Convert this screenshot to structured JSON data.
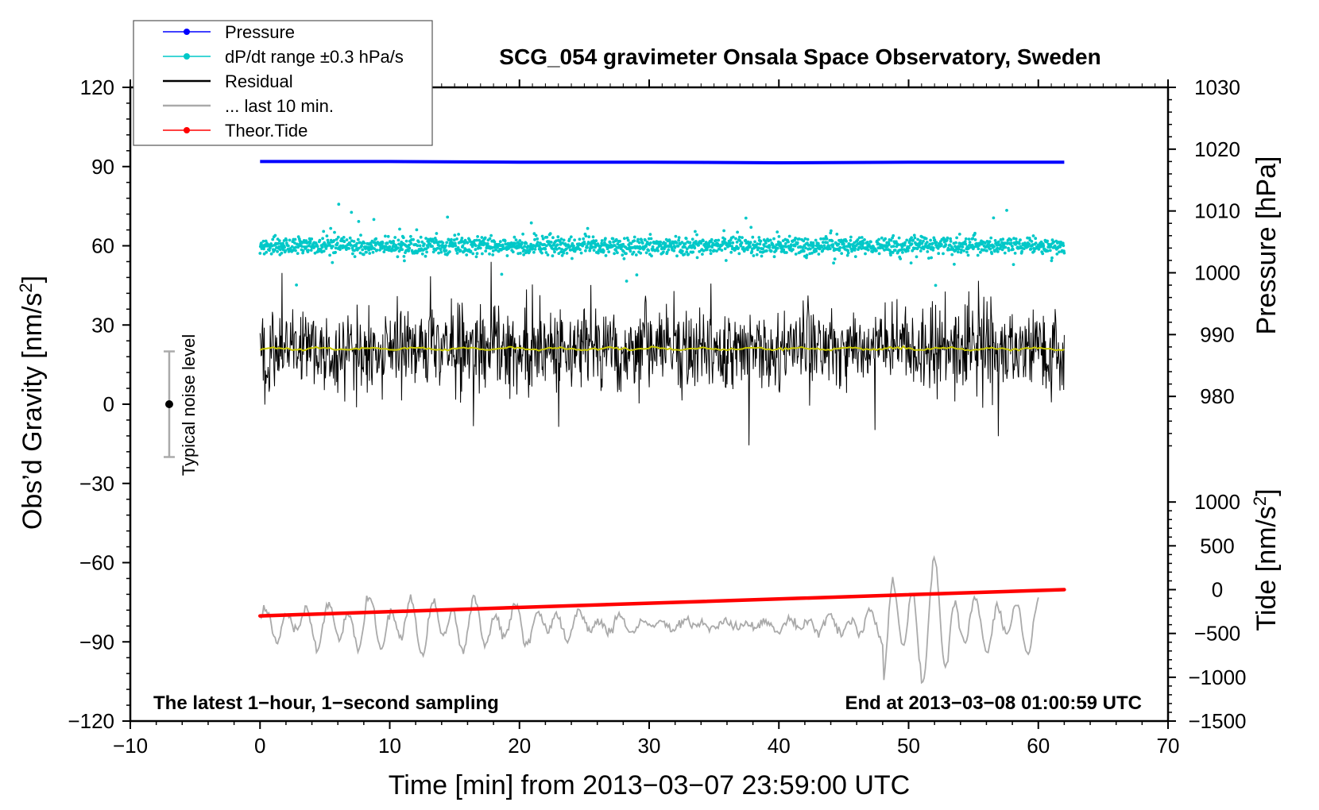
{
  "chart_data": {
    "type": "line",
    "title": "SCG_054 gravimeter Onsala Space Observatory, Sweden",
    "xlabel": "Time [min] from 2013−03−07 23:59:00 UTC",
    "ylabel_left": "Obs'd Gravity [nm/s²]",
    "ylabel_left_main": "Obs’d Gravity [nm/s",
    "ylabel_left_sup": "2",
    "ylabel_left_end": "]",
    "ylabel_right_top": "Pressure [hPa]",
    "ylabel_right_bottom": "Tide [nm/s²]",
    "ylabel_right_bottom_main": "Tide [nm/s",
    "ylabel_right_bottom_sup": "2",
    "ylabel_right_bottom_end": "]",
    "xlim": [
      -10,
      70
    ],
    "ylim": [
      -120,
      120
    ],
    "x_ticks": [
      -10,
      0,
      10,
      20,
      30,
      40,
      50,
      60,
      70
    ],
    "x_tick_labels": [
      "−10",
      "0",
      "10",
      "20",
      "30",
      "40",
      "50",
      "60",
      "70"
    ],
    "y_ticks": [
      -120,
      -90,
      -60,
      -30,
      0,
      30,
      60,
      90,
      120
    ],
    "y_tick_labels": [
      "−120",
      "−90",
      "−60",
      "−30",
      "0",
      "30",
      "60",
      "90",
      "120"
    ],
    "pressure_axis": {
      "range": [
        970,
        1030
      ],
      "ticks": [
        980,
        990,
        1000,
        1010,
        1020,
        1030
      ],
      "tick_labels": [
        "980",
        "990",
        "1000",
        "1010",
        "1020",
        "1030"
      ]
    },
    "tide_axis": {
      "range": [
        -1500,
        1500
      ],
      "ticks": [
        -1500,
        -1000,
        -500,
        0,
        500,
        1000
      ],
      "tick_labels": [
        "−1500",
        "−1000",
        "−500",
        "0",
        "500",
        "1000"
      ]
    },
    "legend": [
      {
        "label": "Pressure",
        "color": "#0000ff",
        "marker": "dot-line"
      },
      {
        "label": "dP/dt range ±0.3 hPa/s",
        "color": "#00c8c8",
        "marker": "dot-line"
      },
      {
        "label": "Residual",
        "color": "#000000",
        "marker": "line"
      },
      {
        "label": "... last 10 min.",
        "color": "#aaaaaa",
        "marker": "line"
      },
      {
        "label": "Theor.Tide",
        "color": "#ff0000",
        "marker": "dot-line"
      }
    ],
    "series": [
      {
        "name": "Pressure",
        "axis": "pressure",
        "x": [
          0,
          10,
          20,
          30,
          40,
          50,
          62
        ],
        "values": [
          1018.0,
          1018.0,
          1017.9,
          1017.9,
          1017.8,
          1017.9,
          1017.9
        ]
      },
      {
        "name": "dP/dt range",
        "axis": "left",
        "x_range": [
          0,
          62
        ],
        "center": 60,
        "spread": 3
      },
      {
        "name": "Residual",
        "axis": "left",
        "x_range": [
          0,
          62
        ],
        "center": 21,
        "spread": 12
      },
      {
        "name": "Residual trend",
        "axis": "left",
        "x_range": [
          0,
          62
        ],
        "center": 21
      },
      {
        "name": "... last 10 min.",
        "axis": "tide",
        "x_range": [
          0,
          60
        ],
        "center": -400,
        "spread": 300
      },
      {
        "name": "Theor.Tide",
        "axis": "tide",
        "x": [
          0,
          62
        ],
        "values": [
          -300,
          0
        ]
      }
    ],
    "noise_indicator": {
      "label": "Typical noise level",
      "x": -7,
      "center": 0,
      "range": [
        -20,
        20
      ]
    },
    "notes": {
      "left": "The latest 1−hour, 1−second sampling",
      "right": "End at 2013−03−08 01:00:59 UTC"
    },
    "colors": {
      "pressure": "#0000ff",
      "dpdt": "#00c8c8",
      "residual": "#000000",
      "trend": "#c8c800",
      "last10": "#aaaaaa",
      "tide": "#ff0000",
      "noise_bar": "#aaaaaa"
    }
  }
}
